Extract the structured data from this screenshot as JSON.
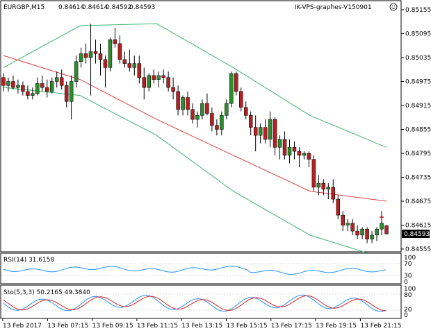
{
  "header": {
    "title": "EURGBP,M15",
    "ohlc": [
      "0.84614",
      "0.84614",
      "0.84592",
      "0.84593"
    ],
    "broker": "IK-VPS-graphes-V150901"
  },
  "main_panel": {
    "price_ticks": [
      "0.85155",
      "0.85095",
      "0.85035",
      "0.84975",
      "0.84915",
      "0.84855",
      "0.84795",
      "0.84735",
      "0.84675",
      "0.84615",
      "0.84555"
    ],
    "current_price": "0.84593"
  },
  "rsi_panel": {
    "label": "RSI(14) 31.6158",
    "levels": [
      "100",
      "70",
      "30",
      "0"
    ]
  },
  "stoch_panel": {
    "label": "Sto(5,3,3) 50.2165 49.3840",
    "levels": [
      "100",
      "80",
      "20",
      "0"
    ]
  },
  "time_axis": {
    "labels": [
      "13 Feb 2017",
      "13 Feb 07:15",
      "13 Feb 09:15",
      "13 Feb 11:15",
      "13 Feb 13:15",
      "13 Feb 15:15",
      "13 Feb 17:15",
      "13 Feb 19:15",
      "13 Feb 21:15"
    ]
  },
  "colors": {
    "bull": "#2e8b2e",
    "bear": "#b22222",
    "ma": "#e04040",
    "bands": "#3cb371",
    "rsi": "#1e90ff",
    "stoch_main": "#1e90ff",
    "stoch_signal": "#e02020"
  },
  "icons": {
    "smiley": "smiley-icon"
  },
  "chart_data": {
    "type": "candlestick",
    "title": "EURGBP,M15",
    "ylim": [
      0.8455,
      0.8516
    ],
    "candles": [
      [
        0.84985,
        0.84995,
        0.8495,
        0.84965
      ],
      [
        0.84965,
        0.84985,
        0.8495,
        0.84975
      ],
      [
        0.84975,
        0.8499,
        0.84955,
        0.8496
      ],
      [
        0.8496,
        0.8498,
        0.84945,
        0.84965
      ],
      [
        0.84965,
        0.84975,
        0.8494,
        0.8495
      ],
      [
        0.8495,
        0.84965,
        0.8493,
        0.8494
      ],
      [
        0.8494,
        0.8496,
        0.8493,
        0.84945
      ],
      [
        0.84945,
        0.84985,
        0.8494,
        0.8497
      ],
      [
        0.8497,
        0.8499,
        0.8495,
        0.8496
      ],
      [
        0.8496,
        0.8498,
        0.84935,
        0.8495
      ],
      [
        0.8495,
        0.84985,
        0.84945,
        0.84975
      ],
      [
        0.84975,
        0.85,
        0.8496,
        0.84985
      ],
      [
        0.84985,
        0.85005,
        0.84955,
        0.84965
      ],
      [
        0.84965,
        0.84975,
        0.8491,
        0.84925
      ],
      [
        0.84925,
        0.8499,
        0.8488,
        0.84975
      ],
      [
        0.84975,
        0.8504,
        0.8496,
        0.85025
      ],
      [
        0.85025,
        0.8506,
        0.8501,
        0.85045
      ],
      [
        0.85045,
        0.8507,
        0.8502,
        0.85035
      ],
      [
        0.85035,
        0.8512,
        0.8494,
        0.8505
      ],
      [
        0.8505,
        0.8508,
        0.8502,
        0.85045
      ],
      [
        0.85045,
        0.8507,
        0.8499,
        0.8503
      ],
      [
        0.8503,
        0.8504,
        0.8496,
        0.8501
      ],
      [
        0.8501,
        0.85085,
        0.85,
        0.8508
      ],
      [
        0.8508,
        0.8511,
        0.8506,
        0.8507
      ],
      [
        0.8507,
        0.8509,
        0.8502,
        0.8503
      ],
      [
        0.8503,
        0.8505,
        0.8501,
        0.8502
      ],
      [
        0.8502,
        0.85055,
        0.85,
        0.8501
      ],
      [
        0.8501,
        0.8504,
        0.8499,
        0.8502
      ],
      [
        0.8502,
        0.8504,
        0.8497,
        0.84985
      ],
      [
        0.84985,
        0.8501,
        0.8493,
        0.8496
      ],
      [
        0.8496,
        0.84995,
        0.8495,
        0.8499
      ],
      [
        0.8499,
        0.85005,
        0.8497,
        0.8498
      ],
      [
        0.8498,
        0.85,
        0.8496,
        0.8499
      ],
      [
        0.8499,
        0.85005,
        0.8497,
        0.84985
      ],
      [
        0.84985,
        0.85,
        0.8495,
        0.8496
      ],
      [
        0.8496,
        0.84985,
        0.8493,
        0.8495
      ],
      [
        0.8495,
        0.84965,
        0.8489,
        0.84905
      ],
      [
        0.84905,
        0.8494,
        0.8489,
        0.84935
      ],
      [
        0.84935,
        0.8495,
        0.8489,
        0.84905
      ],
      [
        0.84905,
        0.8492,
        0.8487,
        0.8488
      ],
      [
        0.8488,
        0.849,
        0.8486,
        0.8489
      ],
      [
        0.8489,
        0.8493,
        0.8488,
        0.8492
      ],
      [
        0.8492,
        0.84945,
        0.8489,
        0.84895
      ],
      [
        0.84895,
        0.8491,
        0.8485,
        0.84865
      ],
      [
        0.84865,
        0.8488,
        0.8484,
        0.84855
      ],
      [
        0.84855,
        0.849,
        0.8484,
        0.8489
      ],
      [
        0.8489,
        0.8493,
        0.8488,
        0.8492
      ],
      [
        0.8492,
        0.85,
        0.8491,
        0.84995
      ],
      [
        0.84995,
        0.85,
        0.8494,
        0.8495
      ],
      [
        0.8495,
        0.8496,
        0.849,
        0.8491
      ],
      [
        0.8491,
        0.84925,
        0.8488,
        0.8489
      ],
      [
        0.8489,
        0.849,
        0.8484,
        0.8486
      ],
      [
        0.8486,
        0.8489,
        0.848,
        0.8484
      ],
      [
        0.8484,
        0.8487,
        0.8482,
        0.8486
      ],
      [
        0.8486,
        0.8488,
        0.8482,
        0.8483
      ],
      [
        0.8483,
        0.849,
        0.8481,
        0.8488
      ],
      [
        0.8488,
        0.84885,
        0.8479,
        0.8481
      ],
      [
        0.8481,
        0.8484,
        0.8478,
        0.8483
      ],
      [
        0.8483,
        0.8485,
        0.8478,
        0.8479
      ],
      [
        0.8479,
        0.8483,
        0.8477,
        0.8481
      ],
      [
        0.8481,
        0.84825,
        0.8478,
        0.848
      ],
      [
        0.848,
        0.8481,
        0.8476,
        0.8479
      ],
      [
        0.8479,
        0.848,
        0.8478,
        0.84795
      ],
      [
        0.84795,
        0.848,
        0.8476,
        0.8478
      ],
      [
        0.8478,
        0.8479,
        0.847,
        0.8471
      ],
      [
        0.8471,
        0.8474,
        0.8469,
        0.8472
      ],
      [
        0.8472,
        0.8473,
        0.8469,
        0.84705
      ],
      [
        0.84705,
        0.8472,
        0.8468,
        0.8471
      ],
      [
        0.8471,
        0.8473,
        0.8467,
        0.8468
      ],
      [
        0.8468,
        0.8469,
        0.8463,
        0.8464
      ],
      [
        0.8464,
        0.8465,
        0.846,
        0.84615
      ],
      [
        0.84615,
        0.8463,
        0.846,
        0.8462
      ],
      [
        0.8462,
        0.8463,
        0.8459,
        0.846
      ],
      [
        0.846,
        0.84615,
        0.8458,
        0.8459
      ],
      [
        0.8459,
        0.8461,
        0.8458,
        0.84605
      ],
      [
        0.84605,
        0.8461,
        0.8457,
        0.8458
      ],
      [
        0.8458,
        0.846,
        0.8457,
        0.8459
      ],
      [
        0.8459,
        0.8461,
        0.84575,
        0.84605
      ],
      [
        0.84605,
        0.8465,
        0.8459,
        0.8462
      ],
      [
        0.84614,
        0.84614,
        0.84592,
        0.84593
      ]
    ],
    "moving_average": [
      0.8504,
      0.8498,
      0.8488,
      0.8479,
      0.847,
      0.84675
    ],
    "upper_band": [
      0.8501,
      0.85115,
      0.8512,
      0.8501,
      0.8489,
      0.8481
    ],
    "lower_band": [
      0.8496,
      0.8494,
      0.8484,
      0.847,
      0.8459,
      0.8453
    ]
  }
}
